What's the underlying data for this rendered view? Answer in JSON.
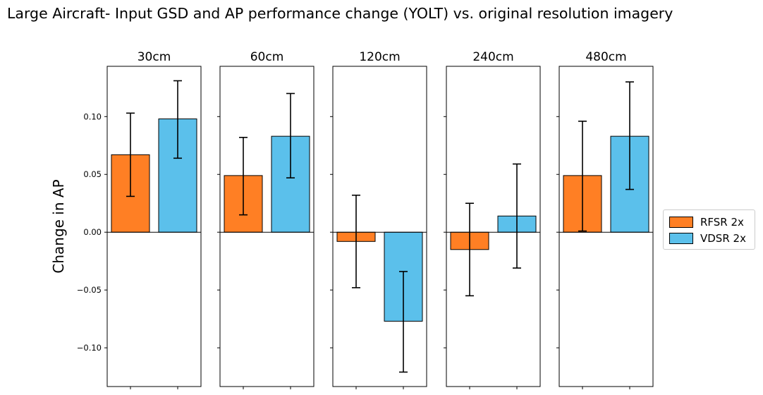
{
  "chart_data": {
    "type": "bar",
    "title": "Large Aircraft- Input GSD and AP performance change (YOLT) vs. original resolution imagery",
    "ylabel": "Change in AP",
    "xlabel": "",
    "ylim": [
      -0.1335,
      0.1435
    ],
    "yticks": [
      -0.1,
      -0.05,
      0.0,
      0.05,
      0.1
    ],
    "ytick_labels": [
      "−0.10",
      "−0.05",
      "0.00",
      "0.05",
      "0.10"
    ],
    "panels": [
      "30cm",
      "60cm",
      "120cm",
      "240cm",
      "480cm"
    ],
    "series": [
      {
        "name": "RFSR 2x",
        "color": "#ff7f24",
        "values": [
          0.067,
          0.049,
          -0.008,
          -0.015,
          0.049
        ],
        "err_low": [
          0.031,
          0.015,
          -0.048,
          -0.055,
          0.001
        ],
        "err_high": [
          0.103,
          0.082,
          0.032,
          0.025,
          0.096
        ]
      },
      {
        "name": "VDSR 2x",
        "color": "#5bc0eb",
        "values": [
          0.098,
          0.083,
          -0.077,
          0.014,
          0.083
        ],
        "err_low": [
          0.064,
          0.047,
          -0.121,
          -0.031,
          0.037
        ],
        "err_high": [
          0.131,
          0.12,
          -0.034,
          0.059,
          0.13
        ]
      }
    ],
    "legend_position": "center-right",
    "grid": false
  }
}
